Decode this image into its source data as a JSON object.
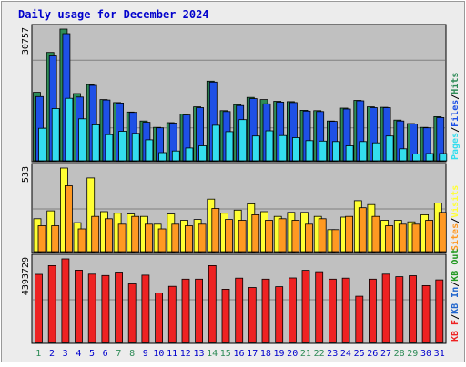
{
  "colors": {
    "outer_bg": "#ececec",
    "panel_bg": "#c0c0c0",
    "title": "#0000cc",
    "grid": "#808080",
    "hits": "#2e8b57",
    "files": "#1e50e6",
    "pages": "#33ddee",
    "visits": "#ffff33",
    "sites": "#ff9922",
    "kbf": "#ee2222",
    "kbin": "#2266cc",
    "kbout": "#229922",
    "weekday": "#0000cc",
    "weekend": "#2e8b57"
  },
  "chart_data": {
    "type": "bar",
    "title": "Daily usage for December 2024",
    "categories": [
      "1",
      "2",
      "3",
      "4",
      "5",
      "6",
      "7",
      "8",
      "9",
      "10",
      "11",
      "12",
      "13",
      "14",
      "15",
      "16",
      "17",
      "18",
      "19",
      "20",
      "21",
      "22",
      "23",
      "24",
      "25",
      "26",
      "27",
      "28",
      "29",
      "30",
      "31"
    ],
    "weekend_days": [
      1,
      7,
      8,
      14,
      15,
      21,
      22,
      28,
      29
    ],
    "panels": [
      {
        "id": "usage",
        "max_label": "30757",
        "ymax": 30757,
        "legend": [
          {
            "text": "Pages",
            "color_key": "pages"
          },
          {
            "text": "Files",
            "color_key": "files"
          },
          {
            "text": "Hits",
            "color_key": "hits"
          }
        ],
        "series": [
          {
            "name": "Hits",
            "color_key": "hits",
            "values": [
              16000,
              25300,
              30757,
              15700,
              17800,
              14300,
              13600,
              11400,
              9300,
              7800,
              8900,
              10900,
              12600,
              18600,
              11700,
              13100,
              14800,
              14300,
              13900,
              13800,
              11800,
              11700,
              9300,
              12300,
              14100,
              12600,
              12500,
              9500,
              8700,
              7800,
              10300
            ]
          },
          {
            "name": "Files",
            "color_key": "files",
            "values": [
              15000,
              24500,
              29700,
              14900,
              17600,
              14200,
              13500,
              11300,
              9000,
              7700,
              8800,
              10700,
              12400,
              18400,
              11500,
              12900,
              14500,
              13300,
              13700,
              13600,
              11600,
              11500,
              9200,
              12100,
              14000,
              12400,
              12400,
              9300,
              8600,
              7700,
              10100
            ]
          },
          {
            "name": "Pages",
            "color_key": "pages",
            "values": [
              7600,
              12200,
              14600,
              9800,
              8400,
              6100,
              6900,
              6400,
              4900,
              1900,
              2300,
              3000,
              3500,
              8300,
              6800,
              9600,
              5800,
              7000,
              5900,
              5400,
              4700,
              4600,
              4500,
              3500,
              4500,
              4200,
              5800,
              2800,
              1600,
              1700,
              1700
            ]
          }
        ]
      },
      {
        "id": "visits",
        "max_label": "533",
        "ymax": 533,
        "legend": [
          {
            "text": "Sites",
            "color_key": "sites"
          },
          {
            "text": "Visits",
            "color_key": "visits"
          }
        ],
        "series": [
          {
            "name": "Visits",
            "color_key": "visits",
            "values": [
              210,
              260,
              533,
              185,
              470,
              255,
              245,
              240,
              225,
              175,
              240,
              200,
              205,
              335,
              245,
              265,
              305,
              255,
              225,
              250,
              250,
              225,
              140,
              220,
              325,
              300,
              200,
              200,
              190,
              235,
              310
            ]
          },
          {
            "name": "Sites",
            "color_key": "sites",
            "values": [
              165,
              165,
              420,
              145,
              225,
              210,
              175,
              225,
              175,
              145,
              175,
              165,
              175,
              275,
              205,
              200,
              235,
              200,
              210,
              200,
              175,
              210,
              140,
              225,
              280,
              225,
              165,
              175,
              175,
              200,
              250
            ]
          }
        ]
      },
      {
        "id": "kbytes",
        "max_label": "4393729",
        "ymax": 4393729,
        "legend": [
          {
            "text": "KB F",
            "color_key": "kbf"
          },
          {
            "text": "KB In",
            "color_key": "kbin"
          },
          {
            "text": "KB Out",
            "color_key": "kbout"
          }
        ],
        "series": [
          {
            "name": "KB F",
            "color_key": "kbf",
            "values": [
              3580000,
              4040000,
              4393729,
              3800000,
              3590000,
              3520000,
              3700000,
              3080000,
              3540000,
              2600000,
              2950000,
              3330000,
              3330000,
              4040000,
              2800000,
              3380000,
              2890000,
              3330000,
              2930000,
              3390000,
              3790000,
              3720000,
              3330000,
              3380000,
              2430000,
              3330000,
              3590000,
              3460000,
              3510000,
              2990000,
              3290000
            ]
          }
        ]
      }
    ]
  }
}
